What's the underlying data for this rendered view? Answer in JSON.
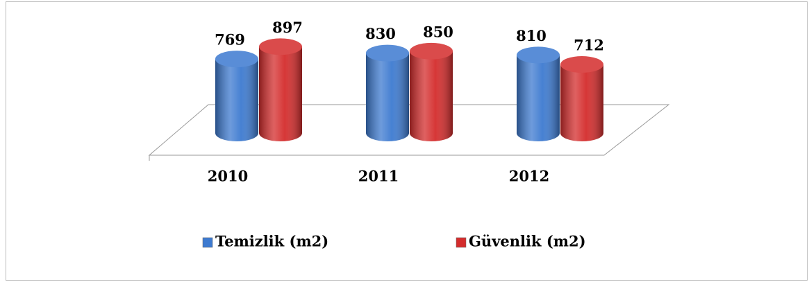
{
  "chart_data": {
    "type": "bar3d",
    "categories": [
      "2010",
      "2011",
      "2012"
    ],
    "series": [
      {
        "name": "Temizlik (m2)",
        "color": "#3d7ad0",
        "values": [
          769,
          830,
          810
        ]
      },
      {
        "name": "Güvenlik (m2)",
        "color": "#d42c2c",
        "values": [
          897,
          850,
          712
        ]
      }
    ],
    "legend": "bottom"
  }
}
